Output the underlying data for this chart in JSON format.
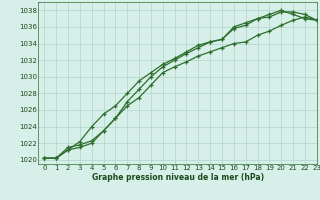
{
  "xlabel": "Graphe pression niveau de la mer (hPa)",
  "background_color": "#d6efe8",
  "grid_color": "#b8d8ce",
  "line_color": "#2d6e2d",
  "xlim": [
    -0.5,
    23
  ],
  "ylim": [
    1019.5,
    1039.0
  ],
  "yticks": [
    1020,
    1022,
    1024,
    1026,
    1028,
    1030,
    1032,
    1034,
    1036,
    1038
  ],
  "xticks": [
    0,
    1,
    2,
    3,
    4,
    5,
    6,
    7,
    8,
    9,
    10,
    11,
    12,
    13,
    14,
    15,
    16,
    17,
    18,
    19,
    20,
    21,
    22,
    23
  ],
  "line1_x": [
    0,
    1,
    2,
    3,
    4,
    5,
    6,
    7,
    8,
    9,
    10,
    11,
    12,
    13,
    14,
    15,
    16,
    17,
    18,
    19,
    20,
    21,
    22,
    23
  ],
  "line1_y": [
    1020.2,
    1020.2,
    1021.5,
    1021.8,
    1022.3,
    1023.5,
    1025.0,
    1026.5,
    1027.5,
    1029.0,
    1030.5,
    1031.2,
    1031.8,
    1032.5,
    1033.0,
    1033.5,
    1034.0,
    1034.2,
    1035.0,
    1035.5,
    1036.2,
    1036.8,
    1037.2,
    1036.8
  ],
  "line2_x": [
    0,
    1,
    2,
    3,
    4,
    5,
    6,
    7,
    8,
    9,
    10,
    11,
    12,
    13,
    14,
    15,
    16,
    17,
    18,
    19,
    20,
    21,
    22,
    23
  ],
  "line2_y": [
    1020.2,
    1020.2,
    1021.2,
    1022.2,
    1024.0,
    1025.5,
    1026.5,
    1028.0,
    1029.5,
    1030.5,
    1031.5,
    1032.2,
    1033.0,
    1033.8,
    1034.2,
    1034.5,
    1035.8,
    1036.2,
    1037.0,
    1037.2,
    1037.8,
    1037.8,
    1037.5,
    1036.8
  ],
  "line3_x": [
    0,
    1,
    2,
    3,
    4,
    5,
    6,
    7,
    8,
    9,
    10,
    11,
    12,
    13,
    14,
    15,
    16,
    17,
    18,
    19,
    20,
    21,
    22,
    23
  ],
  "line3_y": [
    1020.2,
    1020.2,
    1021.2,
    1021.5,
    1022.0,
    1023.5,
    1025.0,
    1027.0,
    1028.5,
    1030.0,
    1031.2,
    1032.0,
    1032.8,
    1033.5,
    1034.2,
    1034.5,
    1036.0,
    1036.5,
    1037.0,
    1037.5,
    1038.0,
    1037.5,
    1037.0,
    1036.8
  ]
}
